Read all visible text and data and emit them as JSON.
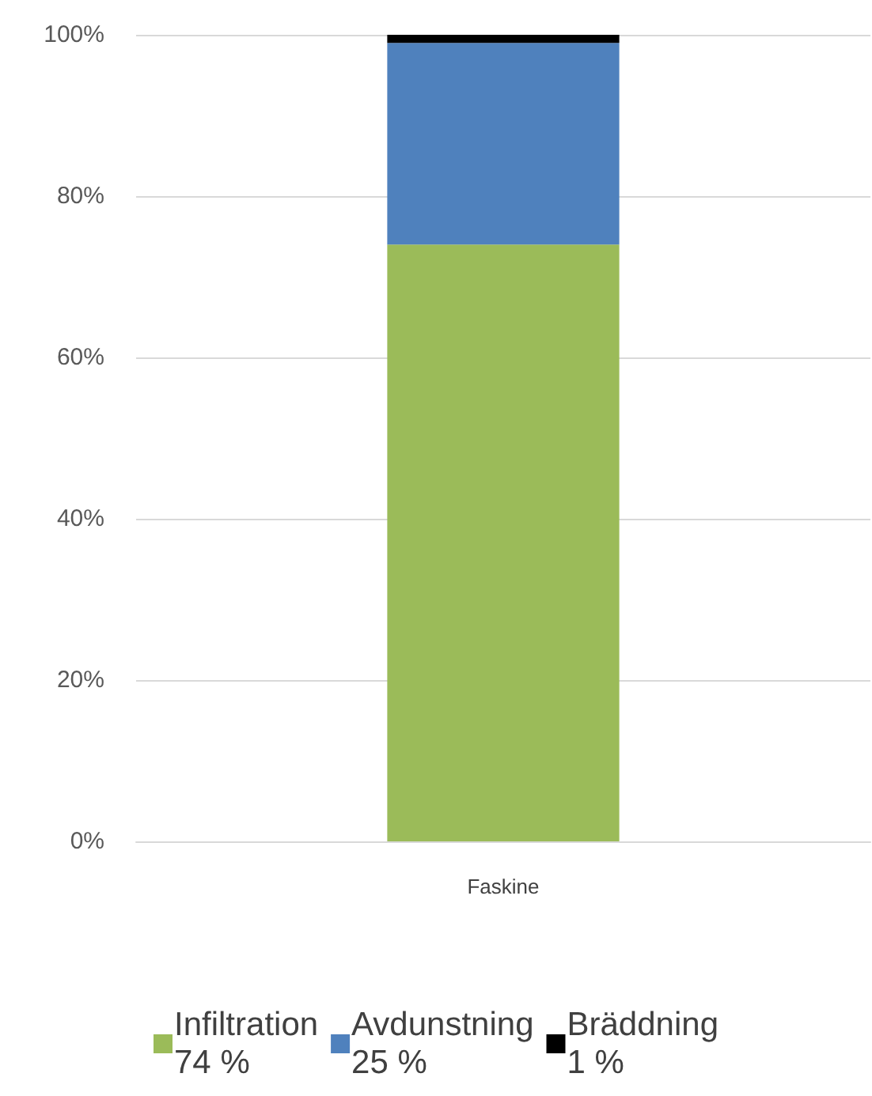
{
  "chart_data": {
    "type": "bar",
    "stacked": true,
    "categories": [
      "Faskine"
    ],
    "series": [
      {
        "name": "Infiltration\n74 %",
        "color": "#9bbb59",
        "values": [
          74
        ]
      },
      {
        "name": "Avdunstning\n25 %",
        "color": "#4f81bd",
        "values": [
          25
        ]
      },
      {
        "name": "Bräddning\n1 %",
        "color": "#000000",
        "values": [
          1
        ]
      }
    ],
    "ylim": [
      0,
      100
    ],
    "yticks": [
      {
        "value": 0,
        "label": "0%"
      },
      {
        "value": 20,
        "label": "20%"
      },
      {
        "value": 40,
        "label": "40%"
      },
      {
        "value": 60,
        "label": "60%"
      },
      {
        "value": 80,
        "label": "80%"
      },
      {
        "value": 100,
        "label": "100%"
      }
    ],
    "grid": "y",
    "legend": "bottom"
  }
}
